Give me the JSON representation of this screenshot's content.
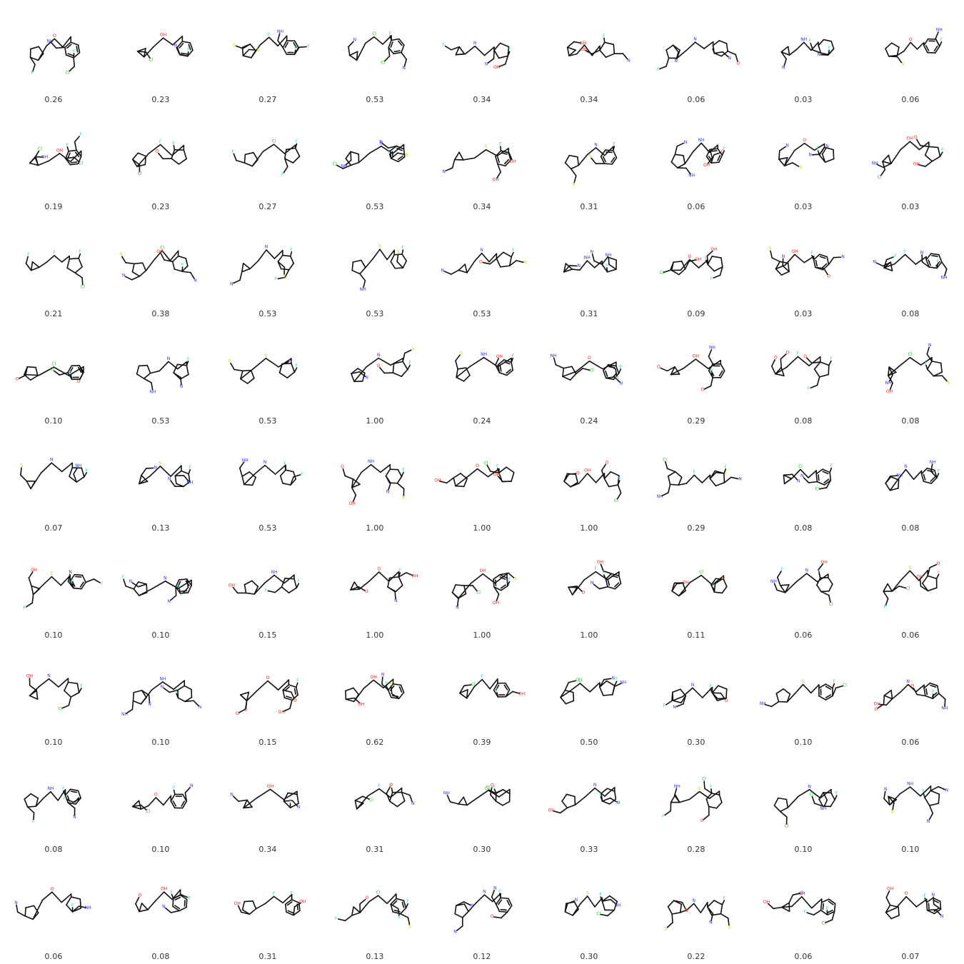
{
  "colors": {
    "carbon": "#111111",
    "nitrogen": "#3333ff",
    "oxygen": "#ff2020",
    "fluorine": "#33cccc",
    "chlorine": "#22bb22",
    "sulfur": "#cccc00",
    "text": "#333333"
  },
  "atom_labels": {
    "nitrogen": "N",
    "nh": "NH",
    "oxygen": "O",
    "hydroxyl": "OH",
    "fluorine": "F",
    "chlorine": "Cl",
    "sulfur": "S"
  },
  "grid": {
    "columns": 9,
    "rows": 9,
    "scores": [
      "0.26",
      "0.23",
      "0.27",
      "0.53",
      "0.34",
      "0.34",
      "0.06",
      "0.03",
      "0.06",
      "0.19",
      "0.23",
      "0.27",
      "0.53",
      "0.34",
      "0.31",
      "0.06",
      "0.03",
      "0.03",
      "0.21",
      "0.38",
      "0.53",
      "0.53",
      "0.53",
      "0.31",
      "0.09",
      "0.03",
      "0.08",
      "0.10",
      "0.53",
      "0.53",
      "1.00",
      "0.24",
      "0.24",
      "0.29",
      "0.08",
      "0.08",
      "0.07",
      "0.13",
      "0.53",
      "1.00",
      "1.00",
      "1.00",
      "0.29",
      "0.08",
      "0.08",
      "0.10",
      "0.10",
      "0.15",
      "1.00",
      "1.00",
      "1.00",
      "0.11",
      "0.06",
      "0.06",
      "0.10",
      "0.10",
      "0.15",
      "0.62",
      "0.39",
      "0.50",
      "0.30",
      "0.10",
      "0.06",
      "0.08",
      "0.10",
      "0.34",
      "0.31",
      "0.30",
      "0.33",
      "0.28",
      "0.10",
      "0.10",
      "0.06",
      "0.08",
      "0.31",
      "0.13",
      "0.12",
      "0.30",
      "0.22",
      "0.06",
      "0.07"
    ]
  }
}
